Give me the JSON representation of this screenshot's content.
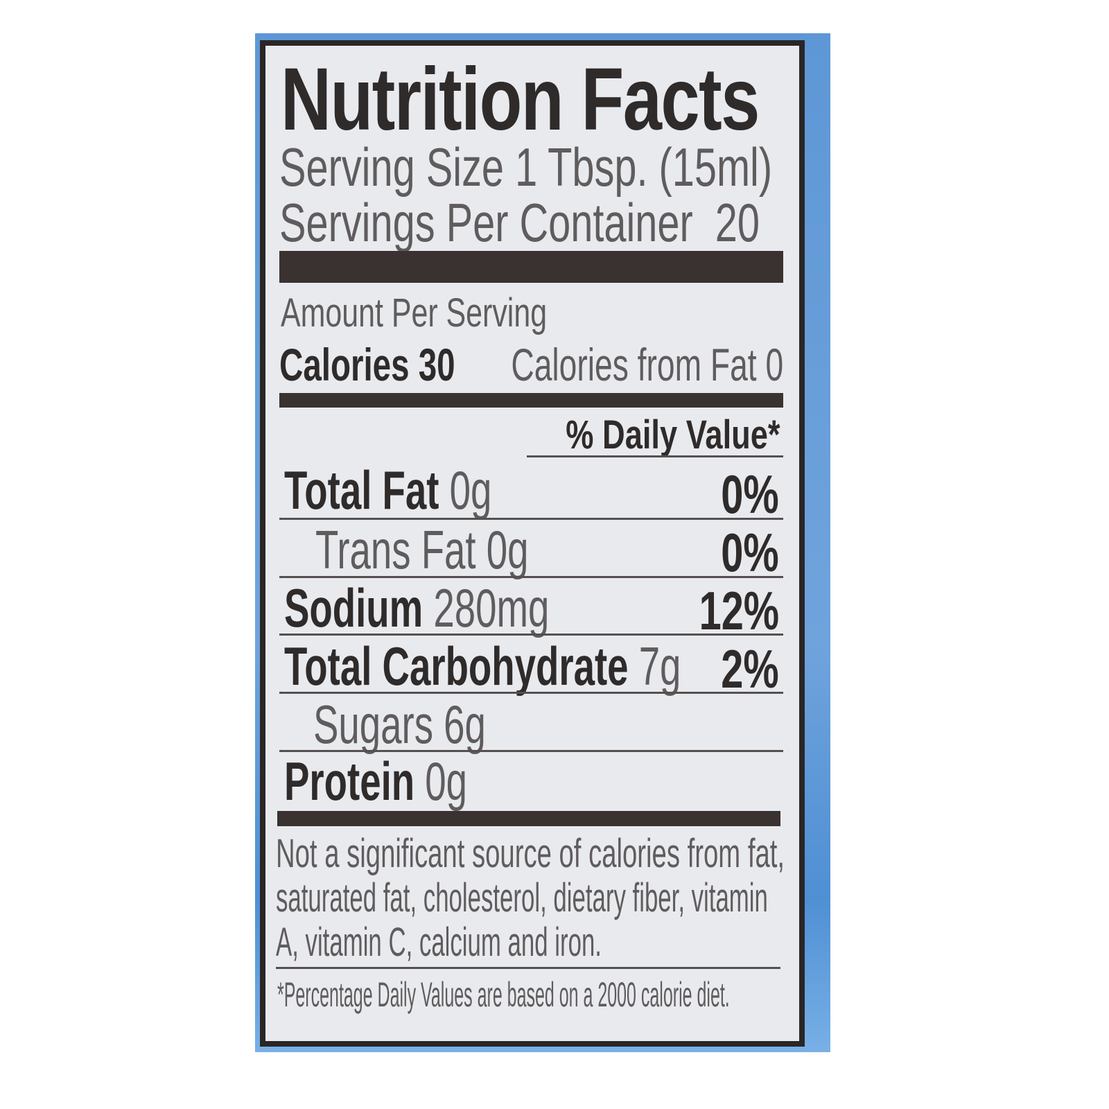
{
  "label": {
    "title": "Nutrition Facts",
    "serving_size": "Serving Size 1 Tbsp. (15ml)",
    "servings_per_container": "Servings Per Container  20",
    "amount_per_serving": "Amount Per Serving",
    "calories_label": "Calories 30",
    "calories_from_fat": "Calories from Fat 0",
    "daily_value_header": "% Daily Value*",
    "rows": [
      {
        "name": "Total Fat",
        "amount": "0g",
        "dv": "0%"
      },
      {
        "name": "Trans Fat",
        "amount": "0g",
        "dv": "0%"
      },
      {
        "name": "Sodium",
        "amount": "280mg",
        "dv": "12%"
      },
      {
        "name": "Total Carbohydrate",
        "amount": "7g",
        "dv": "2%"
      },
      {
        "name": "Sugars",
        "amount": "6g",
        "dv": ""
      },
      {
        "name": "Protein",
        "amount": "0g",
        "dv": ""
      }
    ],
    "footnote_lines": [
      "Not a significant source of calories from fat,",
      "saturated fat, cholesterol, dietary fiber, vitamin",
      "A, vitamin C, calcium and iron."
    ],
    "dv_note": "*Percentage Daily Values are based on a 2000 calorie diet."
  },
  "colors": {
    "background": "#6fa3dc",
    "label": "#e9eaee",
    "ink": "#2f2b2b"
  }
}
